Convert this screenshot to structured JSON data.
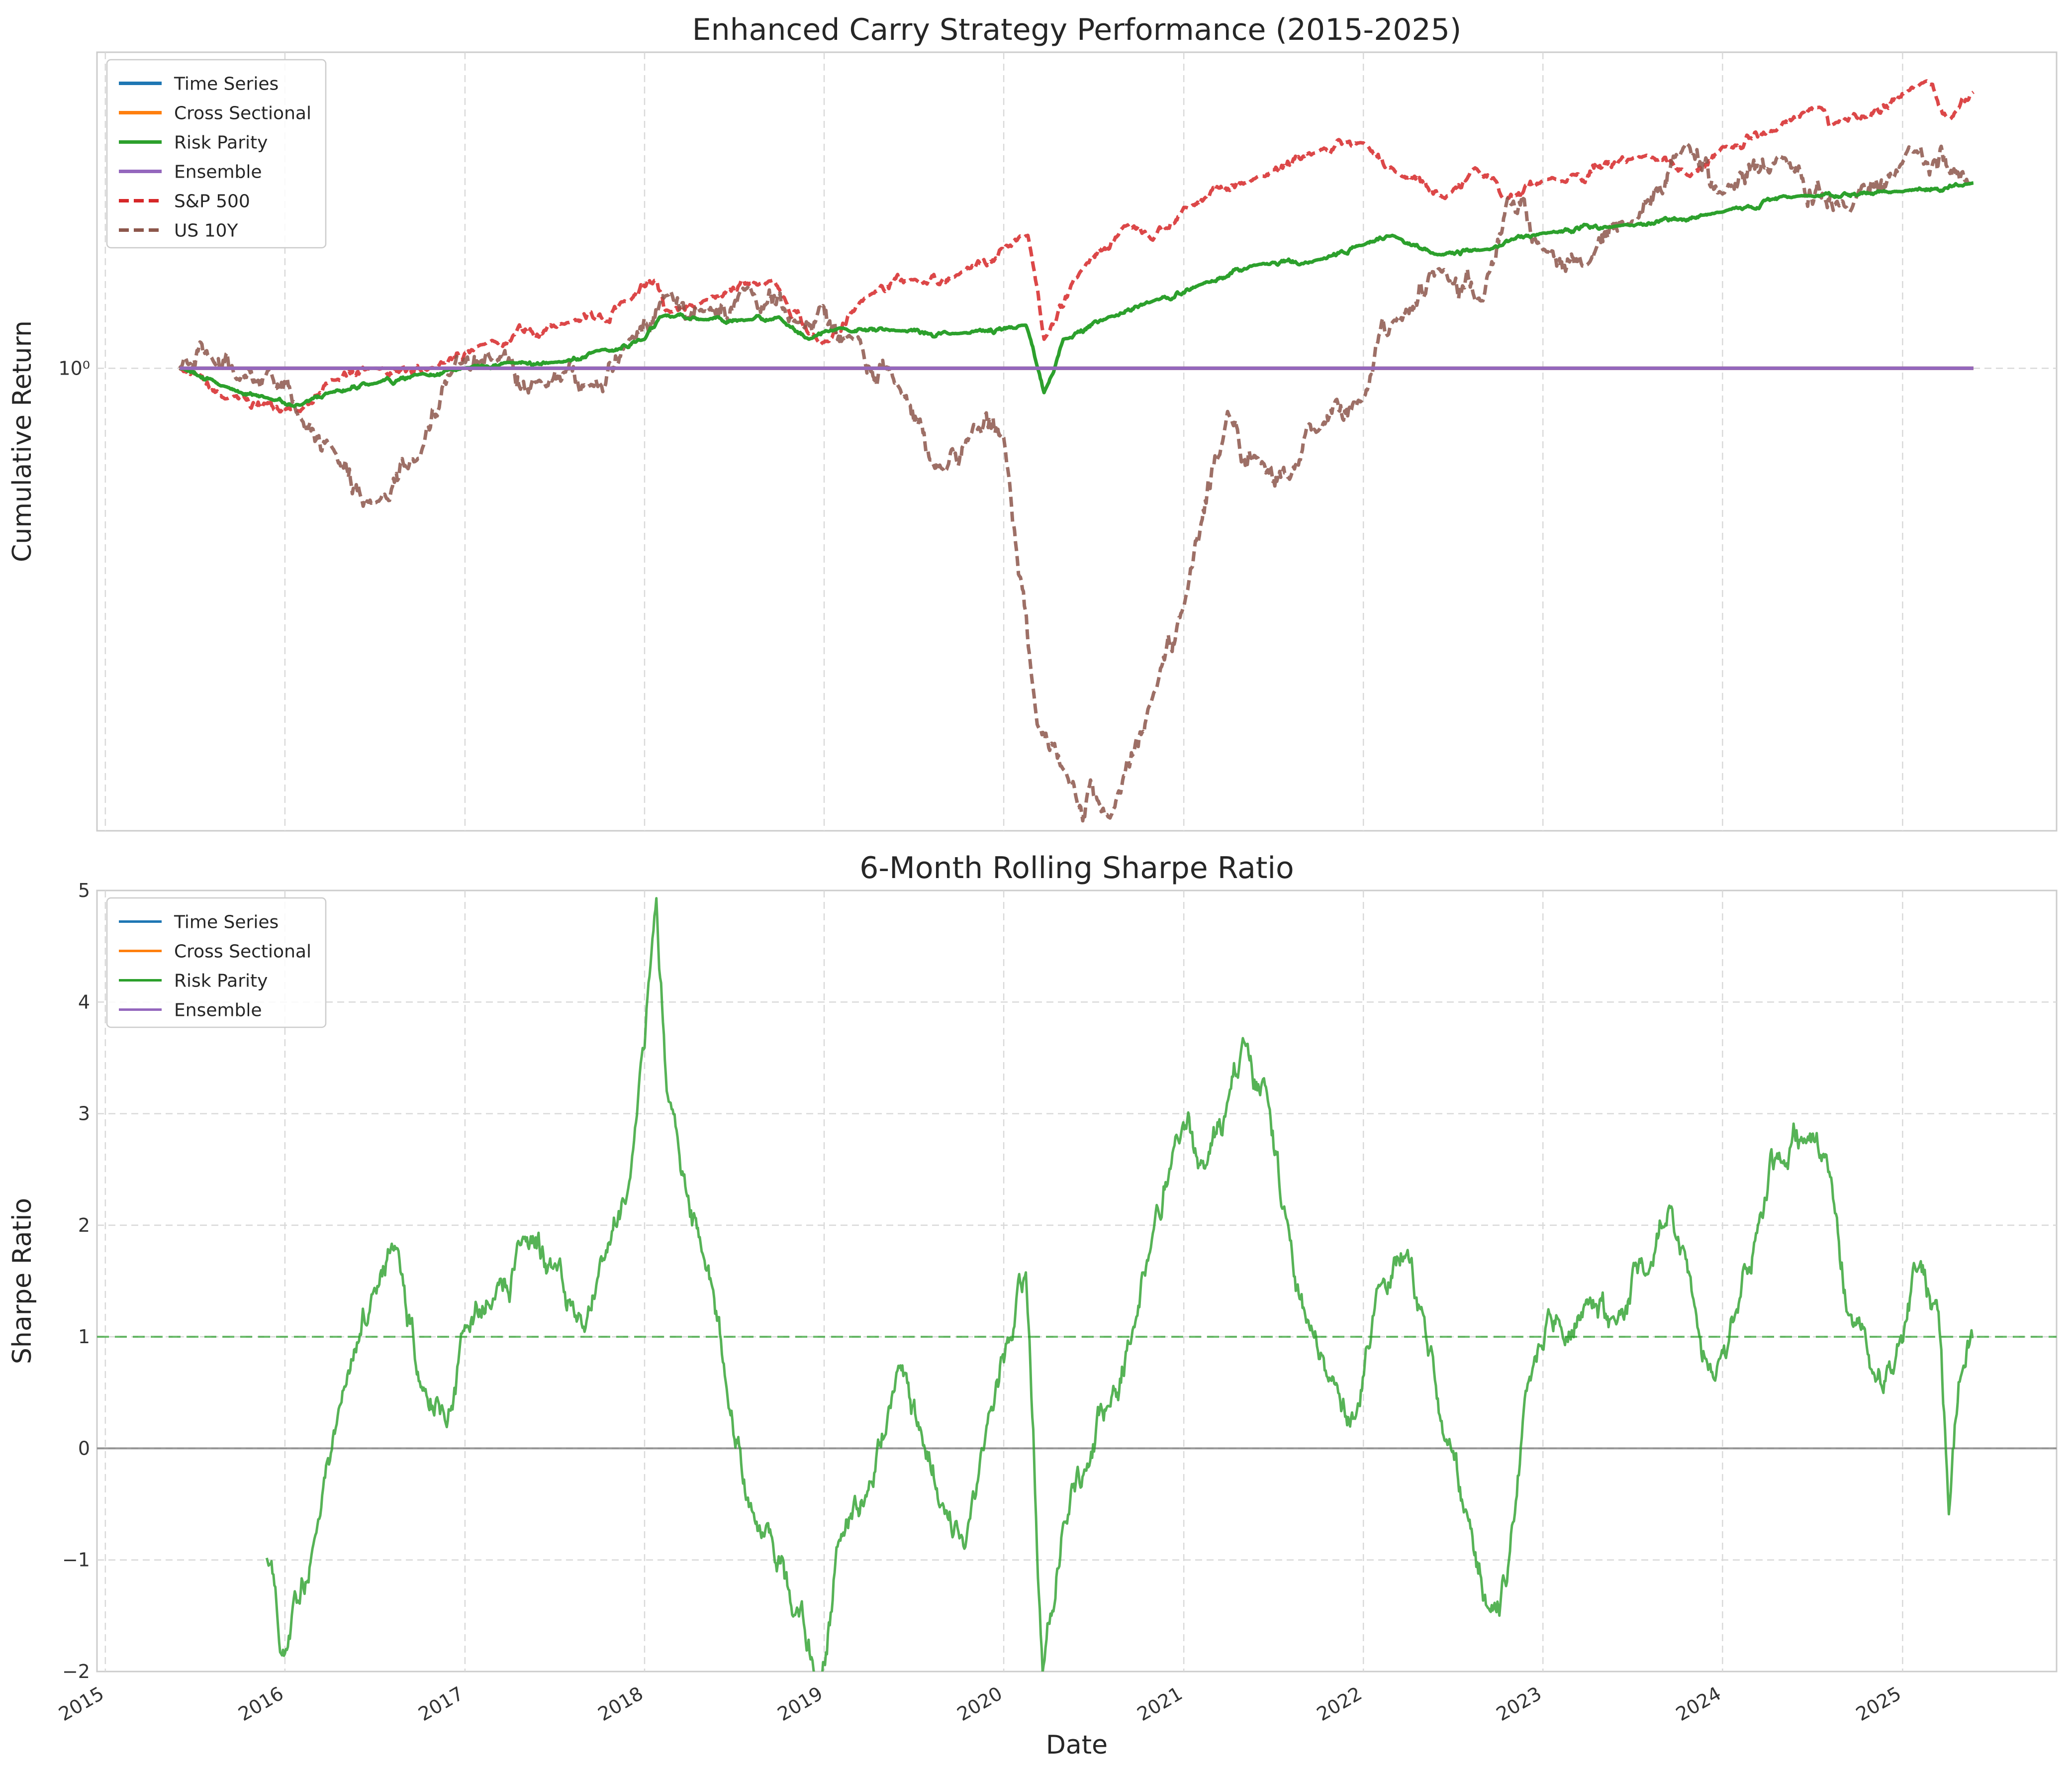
{
  "chart_data": [
    {
      "type": "line",
      "title": "Enhanced Carry Strategy Performance (2015-2025)",
      "ylabel": "Cumulative Return",
      "yscale": "log",
      "yticks": [
        {
          "value": 1,
          "label": "10⁰"
        }
      ],
      "xlim": [
        "2014-12-15",
        "2025-11-10"
      ],
      "ylim": [
        0.46,
        1.7
      ],
      "grid": true,
      "legend": "top-left",
      "series": [
        {
          "name": "Time Series",
          "color": "#1f77b4",
          "style": "solid",
          "points": [
            [
              "2015-06-01",
              1.0
            ],
            [
              "2025-05-25",
              1.0
            ]
          ]
        },
        {
          "name": "Cross Sectional",
          "color": "#ff7f0e",
          "style": "solid",
          "points": [
            [
              "2015-06-01",
              1.0
            ],
            [
              "2025-05-25",
              1.0
            ]
          ]
        },
        {
          "name": "Risk Parity",
          "color": "#2ca02c",
          "style": "solid",
          "points": [
            [
              "2015-06-01",
              1.0
            ],
            [
              "2015-09-01",
              0.97
            ],
            [
              "2015-12-01",
              0.95
            ],
            [
              "2016-02-01",
              0.94
            ],
            [
              "2016-04-01",
              0.96
            ],
            [
              "2016-07-01",
              0.975
            ],
            [
              "2016-10-01",
              0.99
            ],
            [
              "2017-01-01",
              1.0
            ],
            [
              "2017-04-01",
              1.01
            ],
            [
              "2017-07-01",
              1.01
            ],
            [
              "2017-10-01",
              1.03
            ],
            [
              "2018-01-01",
              1.05
            ],
            [
              "2018-02-01",
              1.09
            ],
            [
              "2018-05-01",
              1.085
            ],
            [
              "2018-08-01",
              1.085
            ],
            [
              "2018-10-01",
              1.09
            ],
            [
              "2018-12-01",
              1.05
            ],
            [
              "2019-02-01",
              1.07
            ],
            [
              "2019-06-01",
              1.065
            ],
            [
              "2019-10-01",
              1.06
            ],
            [
              "2020-02-15",
              1.075
            ],
            [
              "2020-03-10",
              1.0
            ],
            [
              "2020-03-23",
              0.96
            ],
            [
              "2020-05-01",
              1.05
            ],
            [
              "2020-08-01",
              1.09
            ],
            [
              "2020-11-01",
              1.12
            ],
            [
              "2021-02-01",
              1.15
            ],
            [
              "2021-06-01",
              1.19
            ],
            [
              "2021-10-01",
              1.2
            ],
            [
              "2022-01-01",
              1.23
            ],
            [
              "2022-03-01",
              1.25
            ],
            [
              "2022-06-01",
              1.21
            ],
            [
              "2022-09-01",
              1.22
            ],
            [
              "2023-01-01",
              1.255
            ],
            [
              "2023-06-01",
              1.27
            ],
            [
              "2024-01-01",
              1.3
            ],
            [
              "2024-06-01",
              1.335
            ],
            [
              "2025-01-01",
              1.345
            ],
            [
              "2025-05-25",
              1.365
            ]
          ]
        },
        {
          "name": "Ensemble",
          "color": "#9467bd",
          "style": "solid",
          "points": [
            [
              "2015-06-01",
              1.0
            ],
            [
              "2025-05-25",
              1.0
            ]
          ]
        },
        {
          "name": "S&P 500",
          "color": "#d62728",
          "style": "dashed",
          "points": [
            [
              "2015-06-01",
              1.0
            ],
            [
              "2015-09-01",
              0.95
            ],
            [
              "2016-02-01",
              0.93
            ],
            [
              "2016-04-01",
              0.98
            ],
            [
              "2016-07-01",
              1.0
            ],
            [
              "2016-11-01",
              1.0
            ],
            [
              "2017-02-01",
              1.04
            ],
            [
              "2017-08-01",
              1.08
            ],
            [
              "2017-12-01",
              1.12
            ],
            [
              "2018-01-25",
              1.16
            ],
            [
              "2018-02-10",
              1.1
            ],
            [
              "2018-05-01",
              1.12
            ],
            [
              "2018-09-20",
              1.16
            ],
            [
              "2018-12-24",
              1.04
            ],
            [
              "2019-04-01",
              1.13
            ],
            [
              "2019-07-01",
              1.16
            ],
            [
              "2019-10-01",
              1.17
            ],
            [
              "2020-02-19",
              1.25
            ],
            [
              "2020-03-23",
              1.05
            ],
            [
              "2020-06-08",
              1.18
            ],
            [
              "2020-09-02",
              1.27
            ],
            [
              "2020-10-30",
              1.24
            ],
            [
              "2021-01-01",
              1.31
            ],
            [
              "2021-06-01",
              1.38
            ],
            [
              "2021-10-01",
              1.44
            ],
            [
              "2022-01-01",
              1.46
            ],
            [
              "2022-03-08",
              1.39
            ],
            [
              "2022-06-16",
              1.33
            ],
            [
              "2022-08-16",
              1.4
            ],
            [
              "2022-10-12",
              1.33
            ],
            [
              "2023-01-01",
              1.37
            ],
            [
              "2023-07-31",
              1.43
            ],
            [
              "2023-10-27",
              1.38
            ],
            [
              "2024-01-01",
              1.45
            ],
            [
              "2024-04-19",
              1.49
            ],
            [
              "2024-07-16",
              1.55
            ],
            [
              "2024-08-05",
              1.5
            ],
            [
              "2025-02-19",
              1.62
            ],
            [
              "2025-04-08",
              1.52
            ],
            [
              "2025-05-25",
              1.59
            ]
          ]
        },
        {
          "name": "US 10Y",
          "color": "#8c564b",
          "style": "dashed",
          "points": [
            [
              "2015-06-01",
              1.0
            ],
            [
              "2015-08-01",
              1.02
            ],
            [
              "2015-10-01",
              0.98
            ],
            [
              "2015-12-01",
              1.0
            ],
            [
              "2016-02-01",
              0.92
            ],
            [
              "2016-04-01",
              0.88
            ],
            [
              "2016-07-08",
              0.8
            ],
            [
              "2016-10-01",
              0.86
            ],
            [
              "2016-12-15",
              1.02
            ],
            [
              "2017-03-01",
              1.01
            ],
            [
              "2017-06-01",
              0.98
            ],
            [
              "2017-09-08",
              0.97
            ],
            [
              "2017-12-01",
              1.05
            ],
            [
              "2018-02-15",
              1.13
            ],
            [
              "2018-05-01",
              1.1
            ],
            [
              "2018-08-01",
              1.15
            ],
            [
              "2018-11-08",
              1.08
            ],
            [
              "2019-03-01",
              1.05
            ],
            [
              "2019-06-01",
              0.97
            ],
            [
              "2019-09-03",
              0.84
            ],
            [
              "2019-11-01",
              0.91
            ],
            [
              "2020-01-01",
              0.89
            ],
            [
              "2020-03-09",
              0.55
            ],
            [
              "2020-05-01",
              0.51
            ],
            [
              "2020-08-04",
              0.47
            ],
            [
              "2020-11-01",
              0.58
            ],
            [
              "2021-01-01",
              0.67
            ],
            [
              "2021-03-31",
              0.93
            ],
            [
              "2021-06-01",
              0.86
            ],
            [
              "2021-08-04",
              0.83
            ],
            [
              "2021-10-01",
              0.9
            ],
            [
              "2022-01-01",
              0.95
            ],
            [
              "2022-03-01",
              1.08
            ],
            [
              "2022-06-14",
              1.18
            ],
            [
              "2022-09-01",
              1.12
            ],
            [
              "2022-10-21",
              1.33
            ],
            [
              "2023-01-01",
              1.22
            ],
            [
              "2023-04-01",
              1.19
            ],
            [
              "2023-07-01",
              1.28
            ],
            [
              "2023-10-19",
              1.46
            ],
            [
              "2024-01-01",
              1.34
            ],
            [
              "2024-04-25",
              1.43
            ],
            [
              "2024-09-16",
              1.3
            ],
            [
              "2025-01-14",
              1.45
            ],
            [
              "2025-05-25",
              1.36
            ]
          ]
        }
      ]
    },
    {
      "type": "line",
      "title": "6-Month Rolling Sharpe Ratio",
      "xlabel": "Date",
      "ylabel": "Sharpe Ratio",
      "xlim": [
        "2014-12-15",
        "2025-11-10"
      ],
      "ylim": [
        -2,
        5
      ],
      "yticks": [
        -2,
        -1,
        0,
        1,
        2,
        3,
        4,
        5
      ],
      "xticks": [
        "2015",
        "2016",
        "2017",
        "2018",
        "2019",
        "2020",
        "2021",
        "2022",
        "2023",
        "2024",
        "2025"
      ],
      "grid": true,
      "legend": "top-left",
      "reference_lines": [
        {
          "y": 0,
          "color": "#808080",
          "style": "solid"
        },
        {
          "y": 1,
          "color": "#2ca02c",
          "style": "dashed"
        }
      ],
      "series": [
        {
          "name": "Time Series",
          "color": "#1f77b4",
          "points": []
        },
        {
          "name": "Cross Sectional",
          "color": "#ff7f0e",
          "points": []
        },
        {
          "name": "Risk Parity",
          "color": "#2ca02c",
          "points": [
            [
              "2015-11-25",
              -1.0
            ],
            [
              "2016-01-01",
              -1.8
            ],
            [
              "2016-03-01",
              -0.8
            ],
            [
              "2016-05-01",
              0.6
            ],
            [
              "2016-07-01",
              1.4
            ],
            [
              "2016-08-15",
              1.7
            ],
            [
              "2016-10-01",
              0.6
            ],
            [
              "2016-11-25",
              0.2
            ],
            [
              "2017-01-01",
              1.1
            ],
            [
              "2017-03-01",
              1.4
            ],
            [
              "2017-05-01",
              1.8
            ],
            [
              "2017-07-01",
              1.6
            ],
            [
              "2017-09-01",
              1.0
            ],
            [
              "2017-10-15",
              1.8
            ],
            [
              "2017-12-01",
              2.5
            ],
            [
              "2018-01-01",
              3.5
            ],
            [
              "2018-01-25",
              4.9
            ],
            [
              "2018-02-15",
              3.2
            ],
            [
              "2018-03-15",
              2.4
            ],
            [
              "2018-05-01",
              1.8
            ],
            [
              "2018-06-15",
              0.6
            ],
            [
              "2018-08-01",
              -0.5
            ],
            [
              "2018-09-15",
              -0.8
            ],
            [
              "2018-11-01",
              -1.5
            ],
            [
              "2018-12-24",
              -2.0
            ],
            [
              "2019-02-01",
              -0.8
            ],
            [
              "2019-04-01",
              -0.4
            ],
            [
              "2019-06-01",
              0.8
            ],
            [
              "2019-07-15",
              0.2
            ],
            [
              "2019-09-01",
              -0.5
            ],
            [
              "2019-10-15",
              -0.9
            ],
            [
              "2019-12-01",
              0.3
            ],
            [
              "2020-01-15",
              1.0
            ],
            [
              "2020-02-15",
              1.5
            ],
            [
              "2020-03-01",
              0.2
            ],
            [
              "2020-03-20",
              -2.0
            ],
            [
              "2020-05-01",
              -0.6
            ],
            [
              "2020-06-15",
              -0.2
            ],
            [
              "2020-08-01",
              0.4
            ],
            [
              "2020-09-15",
              1.0
            ],
            [
              "2020-11-01",
              2.0
            ],
            [
              "2020-12-15",
              2.8
            ],
            [
              "2021-02-15",
              2.5
            ],
            [
              "2021-04-01",
              3.1
            ],
            [
              "2021-05-01",
              3.7
            ],
            [
              "2021-06-15",
              3.2
            ],
            [
              "2021-08-01",
              2.0
            ],
            [
              "2021-09-15",
              1.0
            ],
            [
              "2021-11-01",
              0.7
            ],
            [
              "2021-12-15",
              0.3
            ],
            [
              "2022-02-01",
              1.5
            ],
            [
              "2022-04-01",
              1.8
            ],
            [
              "2022-05-01",
              1.2
            ],
            [
              "2022-06-15",
              0.0
            ],
            [
              "2022-08-01",
              -0.6
            ],
            [
              "2022-09-15",
              -1.4
            ],
            [
              "2022-10-20",
              -1.2
            ],
            [
              "2022-12-01",
              0.5
            ],
            [
              "2023-02-01",
              1.2
            ],
            [
              "2023-04-01",
              1.3
            ],
            [
              "2023-06-01",
              1.1
            ],
            [
              "2023-08-01",
              1.6
            ],
            [
              "2023-09-15",
              2.2
            ],
            [
              "2023-11-01",
              1.3
            ],
            [
              "2023-12-15",
              0.6
            ],
            [
              "2024-02-01",
              1.2
            ],
            [
              "2024-03-15",
              2.0
            ],
            [
              "2024-05-01",
              2.6
            ],
            [
              "2024-06-15",
              2.8
            ],
            [
              "2024-08-01",
              2.5
            ],
            [
              "2024-09-15",
              1.2
            ],
            [
              "2024-11-01",
              0.6
            ],
            [
              "2024-12-15",
              0.7
            ],
            [
              "2025-02-01",
              1.6
            ],
            [
              "2025-03-15",
              1.2
            ],
            [
              "2025-04-05",
              -0.55
            ],
            [
              "2025-04-25",
              0.6
            ],
            [
              "2025-05-25",
              1.0
            ]
          ]
        },
        {
          "name": "Ensemble",
          "color": "#9467bd",
          "points": []
        }
      ]
    }
  ]
}
